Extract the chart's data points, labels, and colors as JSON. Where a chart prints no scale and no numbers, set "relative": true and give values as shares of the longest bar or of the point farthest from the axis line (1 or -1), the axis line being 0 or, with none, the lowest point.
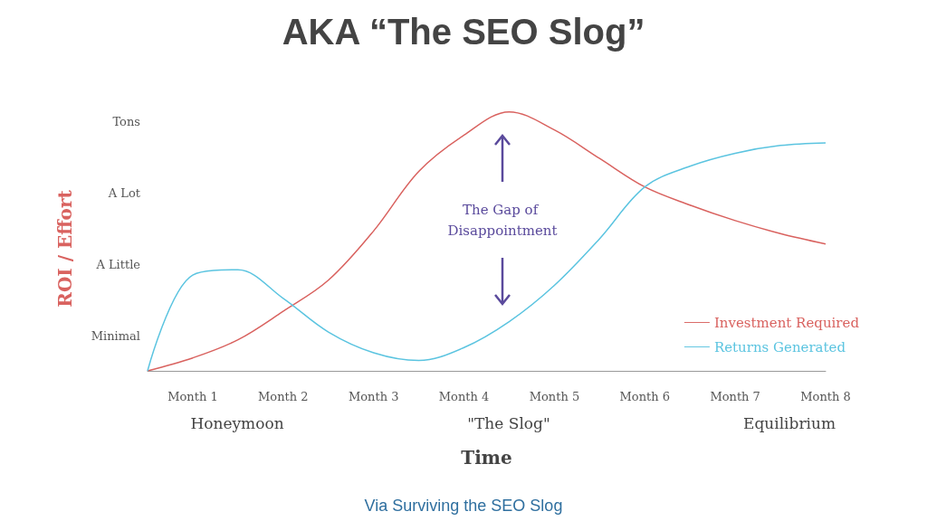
{
  "chart_data": {
    "type": "line",
    "title": "AKA “The SEO Slog”",
    "xlabel": "Time",
    "ylabel": "ROI / Effort",
    "relative": true,
    "categories": [
      null,
      "Month 1",
      null,
      "Month 2",
      null,
      "Month 3",
      null,
      "Month 4",
      null,
      "Month 5",
      null,
      "Month 6",
      null,
      "Month 7",
      null,
      "Month 8"
    ],
    "series": [
      {
        "name": "Investment Required",
        "color": "#d9625f",
        "values": [
          0,
          0.05,
          0.12,
          0.23,
          0.35,
          0.54,
          0.77,
          0.91,
          1.0,
          0.93,
          0.82,
          0.71,
          0.64,
          0.58,
          0.53,
          0.49
        ]
      },
      {
        "name": "Returns Generated",
        "color": "#5bc4e0",
        "values": [
          0,
          0.37,
          0.39,
          0.28,
          0.15,
          0.07,
          0.04,
          0.09,
          0.19,
          0.33,
          0.51,
          0.71,
          0.79,
          0.84,
          0.87,
          0.88
        ]
      }
    ],
    "annotations": [
      "Tons",
      "A Lot",
      "A Little",
      "Minimal",
      "Honeymoon",
      "\"The Slog\"",
      "Equilibrium",
      "The Gap of Disappointment",
      "Via Surviving the SEO Slog"
    ],
    "legend": "bottom right",
    "grid": false,
    "marker": "none",
    "line_style": "solid"
  }
}
